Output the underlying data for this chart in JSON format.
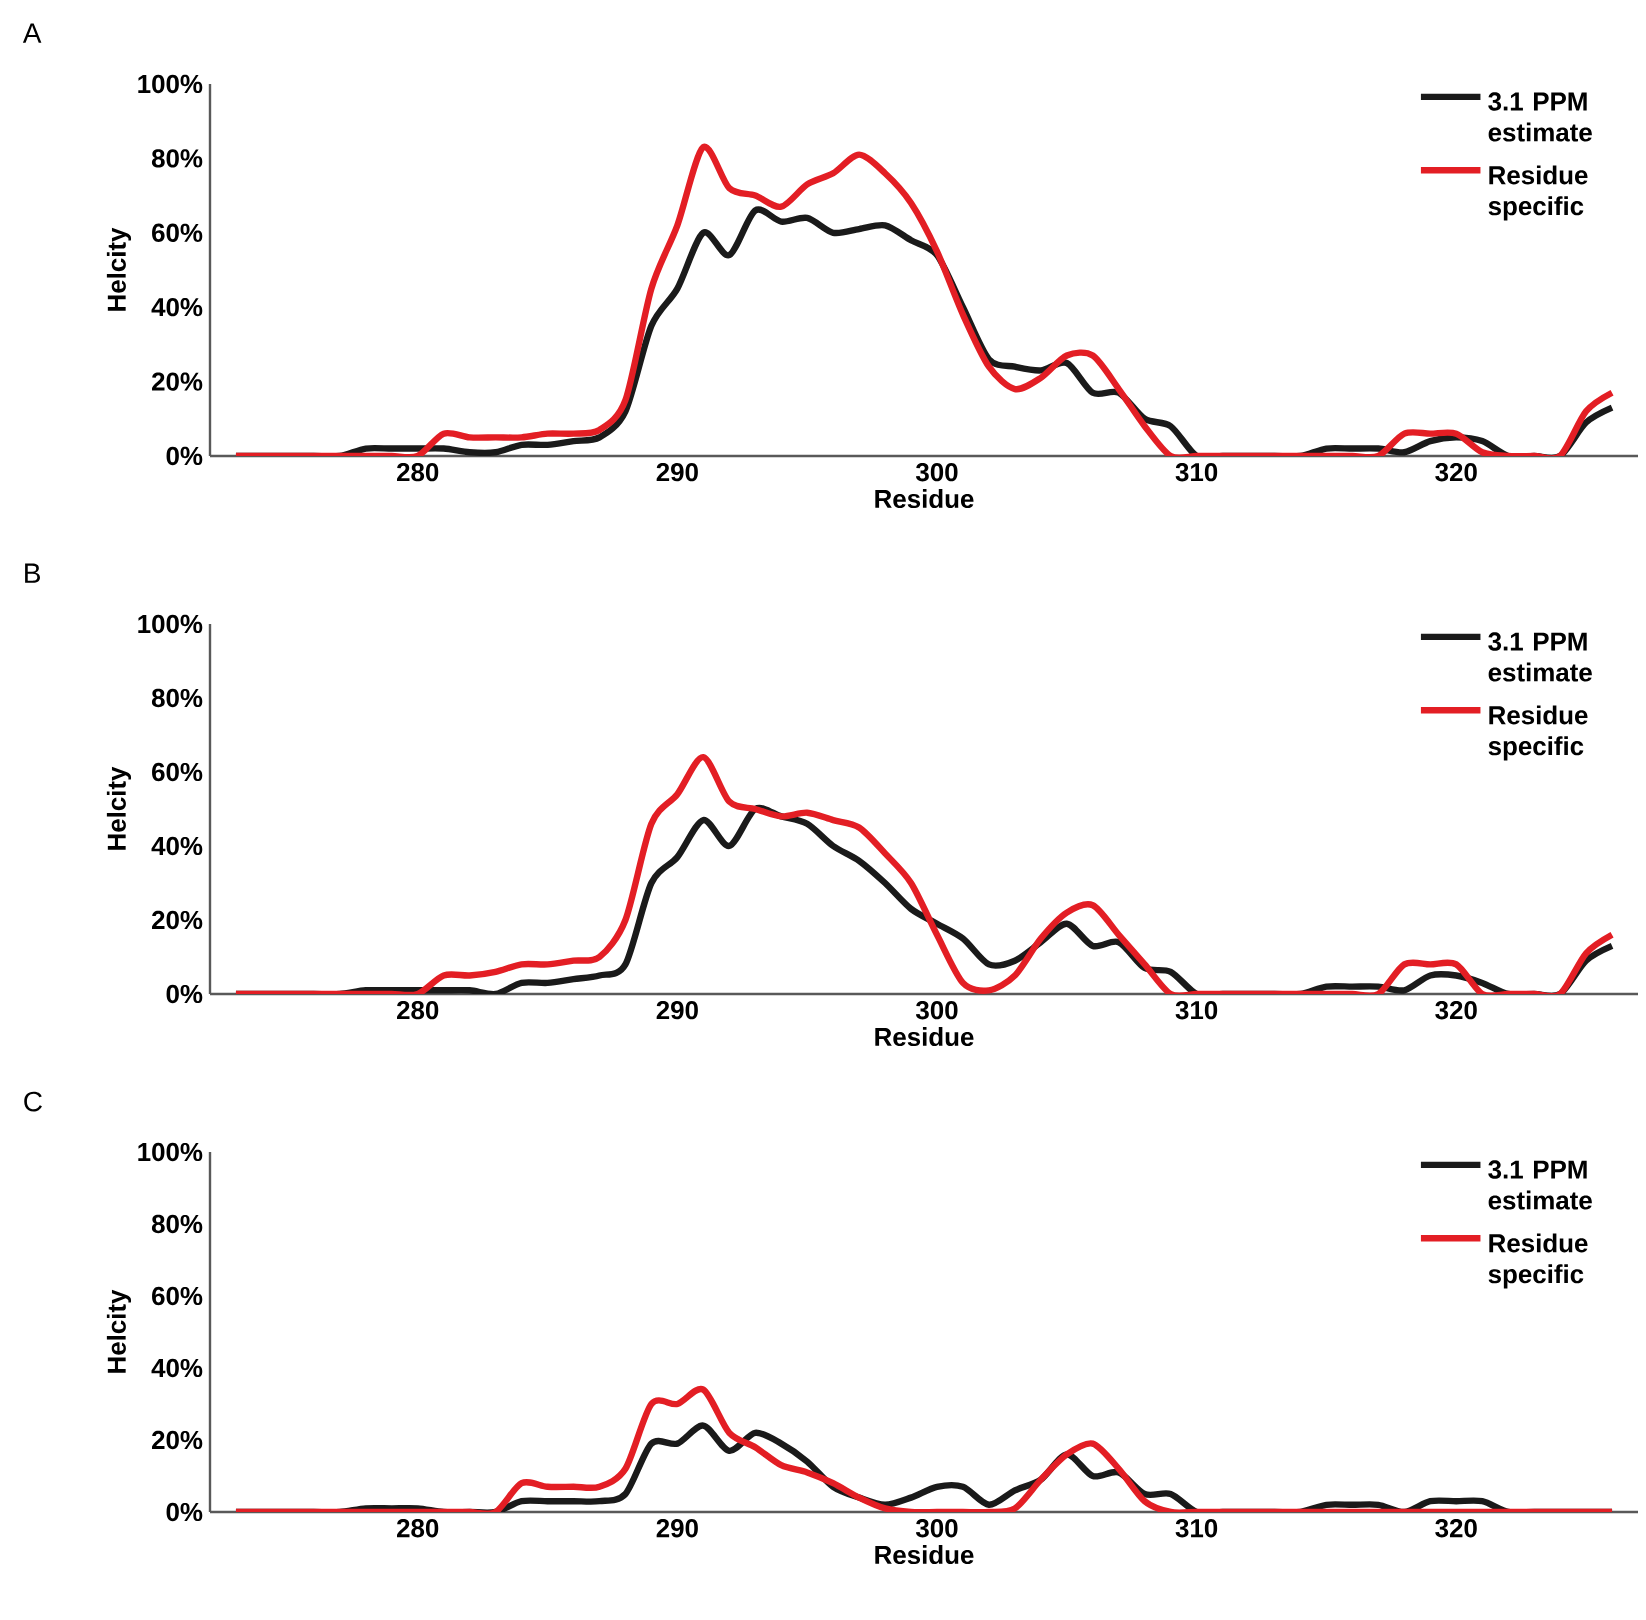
{
  "chart_data": [
    {
      "type": "line",
      "title": "A",
      "xlabel": "Residue",
      "ylabel": "Helcity",
      "legend": "top right",
      "xlim": [
        272,
        327
      ],
      "ylim": [
        0,
        100
      ],
      "xticks": [
        280,
        290,
        300,
        310,
        320
      ],
      "yticks": [
        {
          "value": 0,
          "label": "0%"
        },
        {
          "value": 20,
          "label": "20%"
        },
        {
          "value": 40,
          "label": "40%"
        },
        {
          "value": 60,
          "label": "60%"
        },
        {
          "value": 80,
          "label": "80%"
        },
        {
          "value": 100,
          "label": "100%"
        }
      ],
      "x": [
        273,
        274,
        275,
        276,
        277,
        278,
        279,
        280,
        281,
        282,
        283,
        284,
        285,
        286,
        287,
        288,
        289,
        290,
        291,
        292,
        293,
        294,
        295,
        296,
        297,
        298,
        299,
        300,
        301,
        302,
        303,
        304,
        305,
        306,
        307,
        308,
        309,
        310,
        311,
        312,
        313,
        314,
        315,
        316,
        317,
        318,
        319,
        320,
        321,
        322,
        323,
        324,
        325,
        326
      ],
      "series": [
        {
          "name": "3.1 PPM estimate",
          "color": "#1a1a1a",
          "values": [
            0,
            0,
            0,
            0,
            0,
            2,
            2,
            2,
            2,
            1,
            1,
            3,
            3,
            4,
            5,
            12,
            35,
            45,
            60,
            54,
            66,
            63,
            64,
            60,
            61,
            62,
            58,
            54,
            40,
            26,
            24,
            23,
            25,
            17,
            17,
            10,
            8,
            0,
            0,
            0,
            0,
            0,
            2,
            2,
            2,
            1,
            4,
            5,
            4,
            0,
            0,
            0,
            9,
            13
          ]
        },
        {
          "name": "Residue specific",
          "color": "#e31e24",
          "values": [
            0,
            0,
            0,
            0,
            0,
            0,
            0,
            0,
            6,
            5,
            5,
            5,
            6,
            6,
            7,
            15,
            45,
            62,
            83,
            72,
            70,
            67,
            73,
            76,
            81,
            76,
            68,
            55,
            38,
            24,
            18,
            21,
            27,
            27,
            18,
            8,
            0,
            0,
            0,
            0,
            0,
            0,
            0,
            0,
            0,
            6,
            6,
            6,
            1,
            0,
            0,
            0,
            12,
            17
          ]
        }
      ]
    },
    {
      "type": "line",
      "title": "B",
      "xlabel": "Residue",
      "ylabel": "Helcity",
      "legend": "top right",
      "xlim": [
        272,
        327
      ],
      "ylim": [
        0,
        100
      ],
      "xticks": [
        280,
        290,
        300,
        310,
        320
      ],
      "yticks": [
        {
          "value": 0,
          "label": "0%"
        },
        {
          "value": 20,
          "label": "20%"
        },
        {
          "value": 40,
          "label": "40%"
        },
        {
          "value": 60,
          "label": "60%"
        },
        {
          "value": 80,
          "label": "80%"
        },
        {
          "value": 100,
          "label": "100%"
        }
      ],
      "x": [
        273,
        274,
        275,
        276,
        277,
        278,
        279,
        280,
        281,
        282,
        283,
        284,
        285,
        286,
        287,
        288,
        289,
        290,
        291,
        292,
        293,
        294,
        295,
        296,
        297,
        298,
        299,
        300,
        301,
        302,
        303,
        304,
        305,
        306,
        307,
        308,
        309,
        310,
        311,
        312,
        313,
        314,
        315,
        316,
        317,
        318,
        319,
        320,
        321,
        322,
        323,
        324,
        325,
        326
      ],
      "series": [
        {
          "name": "3.1 PPM estimate",
          "color": "#1a1a1a",
          "values": [
            0,
            0,
            0,
            0,
            0,
            1,
            1,
            1,
            1,
            1,
            0,
            3,
            3,
            4,
            5,
            8,
            30,
            37,
            47,
            40,
            50,
            48,
            46,
            40,
            36,
            30,
            23,
            19,
            15,
            8,
            9,
            14,
            19,
            13,
            14,
            7,
            6,
            0,
            0,
            0,
            0,
            0,
            2,
            2,
            2,
            1,
            5,
            5,
            3,
            0,
            0,
            0,
            9,
            13
          ]
        },
        {
          "name": "Residue specific",
          "color": "#e31e24",
          "values": [
            0,
            0,
            0,
            0,
            0,
            0,
            0,
            0,
            5,
            5,
            6,
            8,
            8,
            9,
            10,
            20,
            46,
            54,
            64,
            52,
            50,
            48,
            49,
            47,
            45,
            38,
            30,
            16,
            3,
            1,
            5,
            15,
            22,
            24,
            16,
            8,
            0,
            0,
            0,
            0,
            0,
            0,
            0,
            0,
            0,
            8,
            8,
            8,
            0,
            0,
            0,
            0,
            11,
            16
          ]
        }
      ]
    },
    {
      "type": "line",
      "title": "C",
      "xlabel": "Residue",
      "ylabel": "Helcity",
      "legend": "top right",
      "xlim": [
        272,
        327
      ],
      "ylim": [
        0,
        100
      ],
      "xticks": [
        280,
        290,
        300,
        310,
        320
      ],
      "yticks": [
        {
          "value": 0,
          "label": "0%"
        },
        {
          "value": 20,
          "label": "20%"
        },
        {
          "value": 40,
          "label": "40%"
        },
        {
          "value": 60,
          "label": "60%"
        },
        {
          "value": 80,
          "label": "80%"
        },
        {
          "value": 100,
          "label": "100%"
        }
      ],
      "x": [
        273,
        274,
        275,
        276,
        277,
        278,
        279,
        280,
        281,
        282,
        283,
        284,
        285,
        286,
        287,
        288,
        289,
        290,
        291,
        292,
        293,
        294,
        295,
        296,
        297,
        298,
        299,
        300,
        301,
        302,
        303,
        304,
        305,
        306,
        307,
        308,
        309,
        310,
        311,
        312,
        313,
        314,
        315,
        316,
        317,
        318,
        319,
        320,
        321,
        322,
        323,
        324,
        325,
        326
      ],
      "series": [
        {
          "name": "3.1 PPM estimate",
          "color": "#1a1a1a",
          "values": [
            0,
            0,
            0,
            0,
            0,
            1,
            1,
            1,
            0,
            0,
            0,
            3,
            3,
            3,
            3,
            5,
            19,
            19,
            24,
            17,
            22,
            19,
            14,
            7,
            4,
            2,
            4,
            7,
            7,
            2,
            6,
            9,
            16,
            10,
            11,
            5,
            5,
            0,
            0,
            0,
            0,
            0,
            2,
            2,
            2,
            0,
            3,
            3,
            3,
            0,
            0,
            0,
            0,
            0
          ]
        },
        {
          "name": "Residue specific",
          "color": "#e31e24",
          "values": [
            0,
            0,
            0,
            0,
            0,
            0,
            0,
            0,
            0,
            0,
            0,
            8,
            7,
            7,
            7,
            12,
            30,
            30,
            34,
            22,
            18,
            13,
            11,
            8,
            4,
            1,
            0,
            0,
            0,
            0,
            1,
            9,
            16,
            19,
            12,
            3,
            0,
            0,
            0,
            0,
            0,
            0,
            0,
            0,
            0,
            0,
            0,
            0,
            0,
            0,
            0,
            0,
            0,
            0
          ]
        }
      ]
    }
  ]
}
